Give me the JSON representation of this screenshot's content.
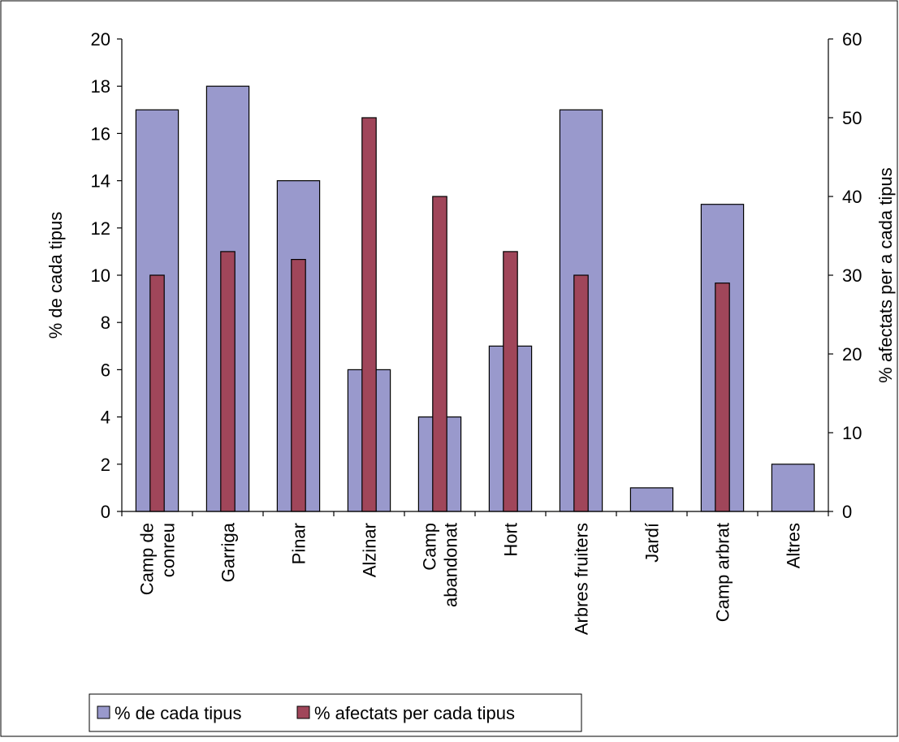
{
  "chart_data": {
    "type": "bar",
    "categories": [
      [
        "Camp de",
        "conreu"
      ],
      [
        "Garriga"
      ],
      [
        "Pinar"
      ],
      [
        "Alzinar"
      ],
      [
        "Camp",
        "abandonat"
      ],
      [
        "Hort"
      ],
      [
        "Arbres fruiters"
      ],
      [
        "Jardí"
      ],
      [
        "Camp arbrat"
      ],
      [
        "Altres"
      ]
    ],
    "series": [
      {
        "name": "% de cada tipus",
        "axis": "left",
        "color": "#9999cc",
        "values": [
          17,
          18,
          14,
          6,
          4,
          7,
          17,
          1,
          13,
          2
        ]
      },
      {
        "name": "% afectats per cada tipus",
        "axis": "right",
        "color": "#a0465a",
        "values": [
          30,
          33,
          32,
          50,
          40,
          33,
          30,
          null,
          29,
          null
        ]
      }
    ],
    "ylabel": "% de cada tipus",
    "y2label": "% afectats per a cada tipus",
    "ylim": [
      0,
      20
    ],
    "y2lim": [
      0,
      60
    ],
    "yticks": [
      "0",
      "2",
      "4",
      "6",
      "8",
      "10",
      "12",
      "14",
      "16",
      "18",
      "20"
    ],
    "y2ticks": [
      "0",
      "10",
      "20",
      "30",
      "40",
      "50",
      "60"
    ],
    "grid": false,
    "legend": "bottom-left"
  }
}
